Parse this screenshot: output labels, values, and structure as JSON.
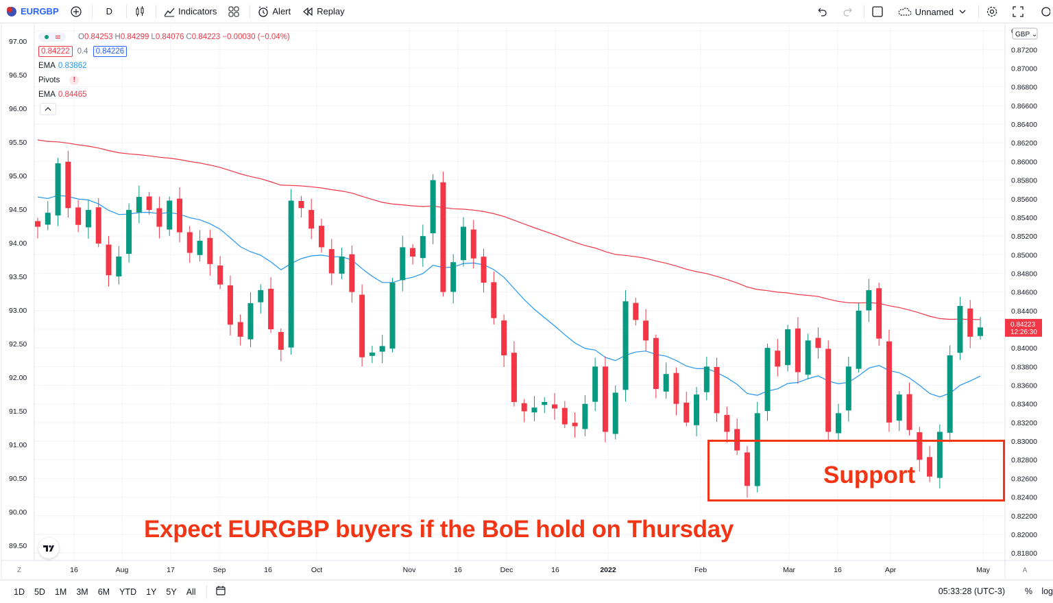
{
  "toolbar": {
    "symbol": "EURGBP",
    "interval": "D",
    "indicators_label": "Indicators",
    "alert_label": "Alert",
    "replay_label": "Replay",
    "layout_name": "Unnamed"
  },
  "legend": {
    "ohlc": {
      "o_label": "O",
      "o_value": "0.84253",
      "h_label": "H",
      "h_value": "0.84299",
      "l_label": "L",
      "l_value": "0.84076",
      "c_label": "C",
      "c_value": "0.84223",
      "change": "−0.00030 (−0.04%)"
    },
    "bid": "0.84222",
    "spread": "0.4",
    "ask": "0.84226",
    "ema1_label": "EMA",
    "ema1_value": "0.83862",
    "pivots_label": "Pivots",
    "pivots_warning": "!",
    "ema2_label": "EMA",
    "ema2_value": "0.84465"
  },
  "colors": {
    "up": "#089981",
    "down": "#f23645",
    "ema_blue": "#2196f3",
    "ema_red": "#f23645",
    "annotation": "#f23615"
  },
  "currency_label": "GBP",
  "last_price": {
    "value": "0.84223",
    "countdown": "12:26:30"
  },
  "bottom": {
    "ranges": [
      "1D",
      "5D",
      "1M",
      "3M",
      "6M",
      "YTD",
      "1Y",
      "5Y",
      "All"
    ],
    "time": "05:33:28 (UTC-3)",
    "percent": "%",
    "log": "log",
    "axis_z": "Z",
    "axis_a": "A"
  },
  "annotations": {
    "main": "Expect EURGBP buyers if the BoE hold on Thursday",
    "support": "Support"
  },
  "chart_data": {
    "type": "candlestick",
    "left_axis_ticks": [
      "97.00",
      "96.50",
      "96.00",
      "95.50",
      "95.00",
      "94.50",
      "94.00",
      "93.50",
      "93.00",
      "92.50",
      "92.00",
      "91.50",
      "91.00",
      "90.50",
      "90.00",
      "89.50"
    ],
    "right_axis_ticks": [
      "0.87400",
      "0.87200",
      "0.87000",
      "0.86800",
      "0.86600",
      "0.86400",
      "0.86200",
      "0.86000",
      "0.85800",
      "0.85600",
      "0.85400",
      "0.85200",
      "0.85000",
      "0.84800",
      "0.84600",
      "0.84400",
      "0.84200",
      "0.84000",
      "0.83800",
      "0.83600",
      "0.83400",
      "0.83200",
      "0.83000",
      "0.82800",
      "0.82600",
      "0.82400",
      "0.82200",
      "0.82000",
      "0.81800"
    ],
    "ylim": [
      0.8172,
      0.8746
    ],
    "x_labels": [
      "16",
      "Aug",
      "17",
      "Sep",
      "16",
      "Oct",
      "Nov",
      "16",
      "Dec",
      "16",
      "2022",
      "Feb",
      "Mar",
      "16",
      "Apr",
      "May"
    ],
    "support_zone": [
      0.8237,
      0.8304
    ],
    "ema_fast_last": 0.83862,
    "ema_slow_last": 0.84465,
    "close_path": [
      0.853,
      0.8545,
      0.8598,
      0.855,
      0.8532,
      0.8548,
      0.8512,
      0.8478,
      0.8498,
      0.8548,
      0.8562,
      0.8548,
      0.853,
      0.8558,
      0.8524,
      0.8502,
      0.8515,
      0.849,
      0.8468,
      0.8425,
      0.8412,
      0.8448,
      0.8462,
      0.842,
      0.8398,
      0.8558,
      0.855,
      0.8528,
      0.8508,
      0.848,
      0.8498,
      0.846,
      0.839,
      0.8395,
      0.8402,
      0.847,
      0.8508,
      0.8498,
      0.852,
      0.858,
      0.846,
      0.8492,
      0.853,
      0.8496,
      0.847,
      0.8432,
      0.8392,
      0.8342,
      0.8332,
      0.8336,
      0.8342,
      0.8335,
      0.8318,
      0.8316,
      0.834,
      0.838,
      0.831,
      0.8352,
      0.845,
      0.843,
      0.8408,
      0.8356,
      0.8372,
      0.834,
      0.832,
      0.835,
      0.838,
      0.833,
      0.831,
      0.829,
      0.8252,
      0.833,
      0.84,
      0.838,
      0.842,
      0.8374,
      0.8408,
      0.84,
      0.831,
      0.833,
      0.838,
      0.844,
      0.8462,
      0.841,
      0.832,
      0.835,
      0.8312,
      0.828,
      0.8262,
      0.831,
      0.8392,
      0.8445,
      0.8412,
      0.8422
    ]
  }
}
